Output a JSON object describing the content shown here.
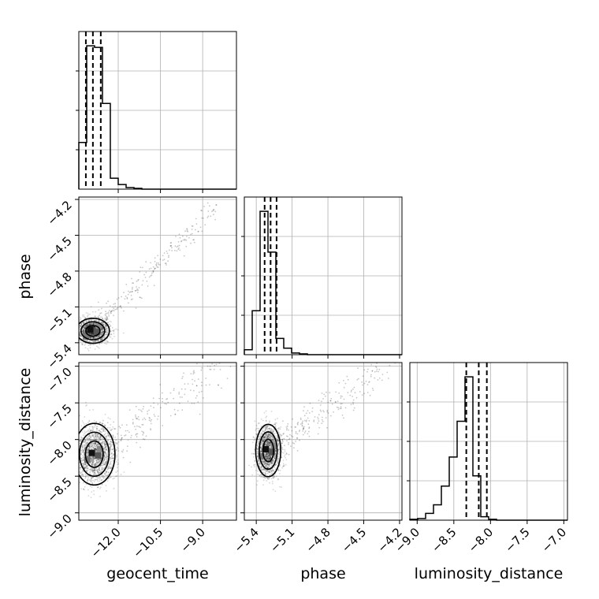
{
  "chart_data": {
    "type": "corner",
    "parameters": [
      "geocent_time",
      "phase",
      "luminosity_distance"
    ],
    "axes": {
      "geocent_time": {
        "label": "geocent_time",
        "range": [
          -13.4,
          -7.8
        ],
        "ticks": [
          -12.0,
          -10.5,
          -9.0
        ],
        "tick_labels": [
          "−12.0",
          "−10.5",
          "−9.0"
        ]
      },
      "phase": {
        "label": "phase",
        "range": [
          -5.5,
          -4.18
        ],
        "ticks": [
          -5.4,
          -5.1,
          -4.8,
          -4.5,
          -4.2
        ],
        "tick_labels": [
          "−5.4",
          "−5.1",
          "−4.8",
          "−4.5",
          "−4.2"
        ]
      },
      "luminosity_distance": {
        "label": "luminosity_distance",
        "range": [
          -9.1,
          -6.95
        ],
        "ticks": [
          -9.0,
          -8.5,
          -8.0,
          -7.5,
          -7.0
        ],
        "tick_labels": [
          "−9.0",
          "−8.5",
          "−8.0",
          "−7.5",
          "−7.0"
        ]
      }
    },
    "histograms": {
      "geocent_time": {
        "bin_edges": [
          -13.4,
          -13.12,
          -12.84,
          -12.56,
          -12.28,
          -12.0,
          -11.72,
          -11.44,
          -11.16,
          -10.88,
          -10.6,
          -10.32,
          -10.04,
          -9.76,
          -9.48,
          -9.2,
          -8.92,
          -8.64,
          -8.36,
          -8.08,
          -7.8
        ],
        "counts": [
          0.3,
          0.92,
          0.91,
          0.55,
          0.07,
          0.03,
          0.01,
          0.005,
          0,
          0,
          0,
          0,
          0,
          0,
          0,
          0,
          0,
          0,
          0,
          0
        ],
        "quantiles": [
          -13.15,
          -12.9,
          -12.62
        ]
      },
      "phase": {
        "bin_edges": [
          -5.5,
          -5.434,
          -5.368,
          -5.302,
          -5.236,
          -5.17,
          -5.104,
          -5.038,
          -4.972,
          -4.906,
          -4.84,
          -4.774,
          -4.708,
          -4.642,
          -4.576,
          -4.51,
          -4.444,
          -4.378,
          -4.312,
          -4.246,
          -4.18
        ],
        "counts": [
          0.03,
          0.27,
          0.88,
          0.63,
          0.1,
          0.04,
          0.01,
          0.005,
          0,
          0,
          0,
          0,
          0,
          0,
          0,
          0,
          0,
          0,
          0,
          0
        ],
        "quantiles": [
          -5.33,
          -5.28,
          -5.23
        ]
      },
      "luminosity_distance": {
        "bin_edges": [
          -9.1,
          -8.9925,
          -8.885,
          -8.7775,
          -8.67,
          -8.5625,
          -8.455,
          -8.3475,
          -8.24,
          -8.1325,
          -8.025,
          -7.9175,
          -7.81,
          -7.7025,
          -7.595,
          -7.4875,
          -7.38,
          -7.2725,
          -7.165,
          -7.0575,
          -6.95
        ],
        "counts": [
          0.005,
          0.01,
          0.04,
          0.09,
          0.2,
          0.37,
          0.58,
          0.84,
          0.26,
          0.02,
          0.005,
          0,
          0,
          0,
          0,
          0,
          0,
          0,
          0,
          0
        ],
        "quantiles": [
          -8.33,
          -8.16,
          -8.05
        ]
      }
    },
    "joint": [
      {
        "x": "geocent_time",
        "y": "phase",
        "center": [
          -12.9,
          -5.3
        ],
        "spread": [
          0.28,
          0.05
        ],
        "trend_to": [
          -8.5,
          -4.25
        ]
      },
      {
        "x": "geocent_time",
        "y": "luminosity_distance",
        "center": [
          -12.85,
          -8.2
        ],
        "spread": [
          0.35,
          0.2
        ],
        "trend_to": [
          -8.2,
          -7.0
        ]
      },
      {
        "x": "phase",
        "y": "luminosity_distance",
        "center": [
          -5.3,
          -8.15
        ],
        "spread": [
          0.05,
          0.17
        ],
        "trend_to": [
          -4.3,
          -7.0
        ]
      }
    ],
    "grid": true
  }
}
